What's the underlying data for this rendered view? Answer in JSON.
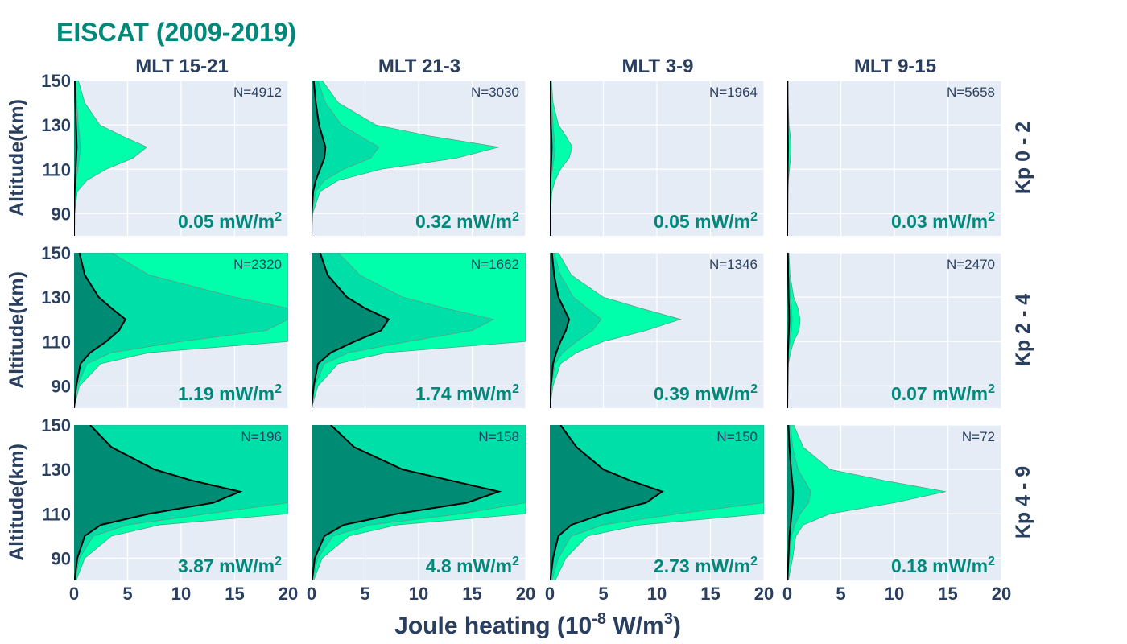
{
  "title": "EISCAT (2009-2019)",
  "colors": {
    "title": "#00897b",
    "flux_label": "#00897b",
    "axis_text": "#2a3f5f",
    "plot_bg": "#e5ecf6",
    "band_outer": "#00ffaa",
    "band_middle": "#00dfa8",
    "band_inner": "#008b74",
    "median_line": "#000000"
  },
  "columns": [
    "MLT 15-21",
    "MLT 21-3",
    "MLT 3-9",
    "MLT 9-15"
  ],
  "rows": [
    "Kp 0 - 2",
    "Kp 2 - 4",
    "Kp 4 - 9"
  ],
  "y_axis_label": "Altitude(km)",
  "x_axis_label": {
    "base": "Joule heating (10",
    "exp1": "-8",
    "mid": " W/m",
    "exp2": "3",
    "end": ")"
  },
  "flux_unit": {
    "base": " mW/m",
    "exp": "2"
  },
  "chart_data": {
    "type": "area",
    "description_kind": "percentile band profiles (outer band, middle band, inner band, median line) of Joule heating vs altitude",
    "xlim": [
      0,
      20
    ],
    "ylim": [
      80,
      150
    ],
    "xticks": [
      0,
      5,
      10,
      15,
      20
    ],
    "yticks": [
      90,
      110,
      130,
      150
    ],
    "grid": true,
    "altitudes": [
      80,
      90,
      100,
      105,
      110,
      115,
      120,
      125,
      130,
      140,
      150
    ],
    "panels": [
      {
        "row": 0,
        "col": 0,
        "n": "N=4912",
        "flux": "0.05",
        "outer": [
          0,
          0.05,
          0.3,
          1.2,
          3.0,
          5.5,
          6.8,
          4.5,
          2.4,
          1.0,
          0.4
        ],
        "middle": [
          0,
          0.02,
          0.1,
          0.2,
          0.35,
          0.5,
          0.6,
          0.5,
          0.4,
          0.25,
          0.15
        ],
        "inner": [
          0,
          0.01,
          0.05,
          0.1,
          0.15,
          0.2,
          0.25,
          0.22,
          0.18,
          0.12,
          0.08
        ],
        "median": [
          0,
          0.01,
          0.05,
          0.1,
          0.15,
          0.2,
          0.25,
          0.22,
          0.18,
          0.12,
          0.08
        ]
      },
      {
        "row": 0,
        "col": 1,
        "n": "N=3030",
        "flux": "0.32",
        "outer": [
          0,
          0.1,
          0.8,
          2.5,
          6.5,
          13.5,
          17.5,
          11.0,
          6.0,
          2.5,
          1.0
        ],
        "middle": [
          0,
          0.05,
          0.4,
          1.2,
          3.0,
          5.5,
          6.3,
          4.5,
          2.8,
          1.3,
          0.6
        ],
        "inner": [
          0,
          0.02,
          0.15,
          0.4,
          0.8,
          1.2,
          1.3,
          1.0,
          0.7,
          0.4,
          0.2
        ],
        "median": [
          0,
          0.02,
          0.15,
          0.4,
          0.8,
          1.2,
          1.3,
          1.0,
          0.7,
          0.4,
          0.2
        ]
      },
      {
        "row": 0,
        "col": 2,
        "n": "N=1964",
        "flux": "0.05",
        "outer": [
          0,
          0.05,
          0.2,
          0.5,
          1.0,
          1.8,
          2.1,
          1.5,
          0.8,
          0.3,
          0.15
        ],
        "middle": [
          0,
          0.02,
          0.05,
          0.1,
          0.25,
          0.4,
          0.5,
          0.4,
          0.3,
          0.15,
          0.08
        ],
        "inner": [
          0,
          0.01,
          0.03,
          0.05,
          0.1,
          0.15,
          0.18,
          0.15,
          0.1,
          0.06,
          0.04
        ],
        "median": [
          0,
          0.01,
          0.03,
          0.05,
          0.1,
          0.15,
          0.18,
          0.15,
          0.1,
          0.06,
          0.04
        ]
      },
      {
        "row": 0,
        "col": 3,
        "n": "N=5658",
        "flux": "0.03",
        "outer": [
          0,
          0.02,
          0.05,
          0.1,
          0.2,
          0.3,
          0.35,
          0.28,
          0.15,
          0.08,
          0.05
        ],
        "middle": [
          0,
          0.01,
          0.03,
          0.05,
          0.08,
          0.1,
          0.12,
          0.1,
          0.07,
          0.04,
          0.03
        ],
        "inner": [
          0,
          0.01,
          0.02,
          0.03,
          0.04,
          0.05,
          0.06,
          0.05,
          0.04,
          0.03,
          0.02
        ],
        "median": [
          0,
          0.01,
          0.02,
          0.03,
          0.04,
          0.05,
          0.06,
          0.05,
          0.04,
          0.03,
          0.02
        ]
      },
      {
        "row": 1,
        "col": 0,
        "n": "N=2320",
        "flux": "1.19",
        "outer": [
          0,
          0.5,
          2.5,
          7.0,
          20,
          20,
          20,
          20,
          20,
          20,
          20
        ],
        "middle": [
          0,
          0.3,
          1.2,
          3.5,
          10.0,
          18.0,
          20,
          20,
          15.0,
          7.0,
          3.5
        ],
        "inner": [
          0,
          0.2,
          0.6,
          1.5,
          3.0,
          4.2,
          4.8,
          3.5,
          2.3,
          1.0,
          0.5
        ],
        "median": [
          0,
          0.2,
          0.6,
          1.5,
          3.0,
          4.2,
          4.8,
          3.5,
          2.3,
          1.0,
          0.5
        ]
      },
      {
        "row": 1,
        "col": 1,
        "n": "N=1662",
        "flux": "1.74",
        "outer": [
          0,
          0.6,
          2.5,
          7.0,
          20,
          20,
          20,
          20,
          20,
          20,
          20
        ],
        "middle": [
          0,
          0.3,
          1.2,
          3.5,
          9.0,
          15.0,
          17.0,
          12.5,
          8.5,
          4.5,
          2.5
        ],
        "inner": [
          0,
          0.2,
          0.6,
          1.8,
          4.0,
          6.5,
          7.2,
          5.0,
          3.3,
          1.5,
          0.8
        ],
        "median": [
          0,
          0.2,
          0.6,
          1.8,
          4.0,
          6.5,
          7.2,
          5.0,
          3.3,
          1.5,
          0.8
        ]
      },
      {
        "row": 1,
        "col": 2,
        "n": "N=1346",
        "flux": "0.39",
        "outer": [
          0,
          0.3,
          1.0,
          2.5,
          5.0,
          9.0,
          12.2,
          8.5,
          5.0,
          2.0,
          0.8
        ],
        "middle": [
          0,
          0.15,
          0.5,
          1.2,
          2.5,
          4.0,
          4.8,
          3.5,
          2.2,
          1.0,
          0.4
        ],
        "inner": [
          0,
          0.1,
          0.3,
          0.6,
          1.0,
          1.5,
          1.8,
          1.3,
          0.8,
          0.4,
          0.2
        ],
        "median": [
          0,
          0.1,
          0.3,
          0.6,
          1.0,
          1.5,
          1.8,
          1.3,
          0.8,
          0.4,
          0.2
        ]
      },
      {
        "row": 1,
        "col": 3,
        "n": "N=2470",
        "flux": "0.07",
        "outer": [
          0,
          0.05,
          0.1,
          0.3,
          0.6,
          1.1,
          1.2,
          1.0,
          0.6,
          0.25,
          0.15
        ],
        "middle": [
          0,
          0.03,
          0.06,
          0.12,
          0.25,
          0.4,
          0.45,
          0.4,
          0.3,
          0.15,
          0.1
        ],
        "inner": [
          0,
          0.02,
          0.04,
          0.06,
          0.1,
          0.15,
          0.18,
          0.16,
          0.12,
          0.08,
          0.05
        ],
        "median": [
          0,
          0.02,
          0.04,
          0.06,
          0.1,
          0.15,
          0.18,
          0.16,
          0.12,
          0.08,
          0.05
        ]
      },
      {
        "row": 2,
        "col": 0,
        "n": "N=196",
        "flux": "3.87",
        "outer": [
          0.2,
          1.0,
          3.5,
          8.0,
          20,
          20,
          20,
          20,
          20,
          20,
          20
        ],
        "middle": [
          0.1,
          0.5,
          1.8,
          5.0,
          12.5,
          20,
          20,
          20,
          20,
          20,
          20
        ],
        "inner": [
          0.05,
          0.3,
          1.0,
          2.5,
          7.0,
          13.0,
          15.5,
          11.0,
          7.5,
          3.5,
          1.5
        ],
        "median": [
          0.05,
          0.3,
          1.0,
          2.5,
          7.0,
          13.0,
          15.5,
          11.0,
          7.5,
          3.5,
          1.5
        ]
      },
      {
        "row": 2,
        "col": 1,
        "n": "N=158",
        "flux": "4.8",
        "outer": [
          0.2,
          1.0,
          3.5,
          8.0,
          20,
          20,
          20,
          20,
          20,
          20,
          20
        ],
        "middle": [
          0.1,
          0.6,
          2.0,
          5.5,
          14.0,
          20,
          20,
          20,
          20,
          20,
          20
        ],
        "inner": [
          0.05,
          0.3,
          1.2,
          3.0,
          8.0,
          14.5,
          17.5,
          13.0,
          8.5,
          4.0,
          1.8
        ],
        "median": [
          0.05,
          0.3,
          1.2,
          3.0,
          8.0,
          14.5,
          17.5,
          13.0,
          8.5,
          4.0,
          1.8
        ]
      },
      {
        "row": 2,
        "col": 2,
        "n": "N=150",
        "flux": "2.73",
        "outer": [
          0.5,
          1.5,
          3.5,
          8.5,
          20,
          20,
          20,
          20,
          20,
          20,
          20
        ],
        "middle": [
          0.2,
          0.8,
          2.0,
          5.0,
          12.0,
          20,
          20,
          20,
          20,
          20,
          20
        ],
        "inner": [
          0.05,
          0.3,
          0.8,
          2.0,
          5.0,
          9.0,
          10.5,
          7.5,
          5.0,
          2.5,
          1.0
        ],
        "median": [
          0.05,
          0.3,
          0.8,
          2.0,
          5.0,
          9.0,
          10.5,
          7.5,
          5.0,
          2.5,
          1.0
        ]
      },
      {
        "row": 2,
        "col": 3,
        "n": "N=72",
        "flux": "0.18",
        "outer": [
          0.1,
          0.5,
          0.8,
          1.5,
          4.0,
          10.0,
          14.8,
          9.0,
          4.0,
          1.5,
          0.6
        ],
        "middle": [
          0.05,
          0.2,
          0.4,
          0.7,
          1.2,
          2.0,
          2.2,
          1.6,
          1.0,
          0.5,
          0.3
        ],
        "inner": [
          0.02,
          0.1,
          0.2,
          0.3,
          0.4,
          0.5,
          0.55,
          0.45,
          0.35,
          0.2,
          0.1
        ],
        "median": [
          0.02,
          0.1,
          0.2,
          0.3,
          0.4,
          0.5,
          0.55,
          0.45,
          0.35,
          0.2,
          0.1
        ]
      }
    ]
  }
}
